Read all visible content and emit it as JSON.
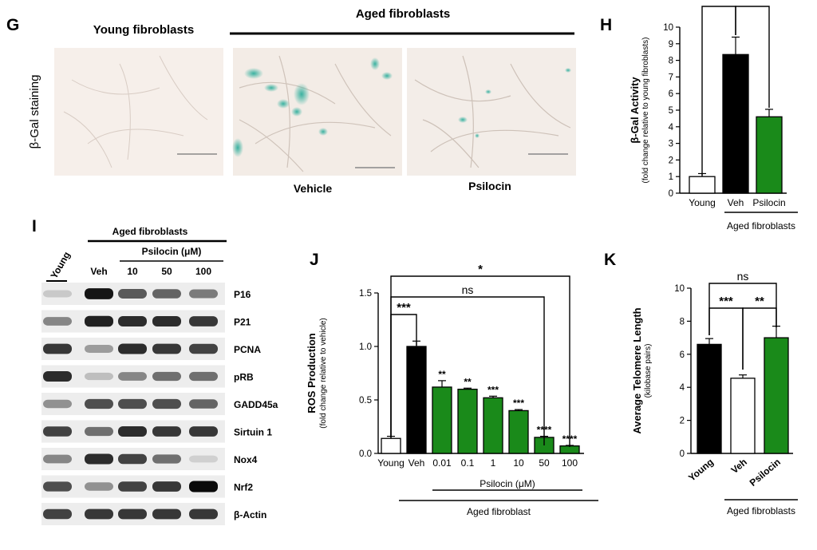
{
  "panel_g": {
    "letter": "G",
    "young_header": "Young fibroblasts",
    "aged_header": "Aged fibroblasts",
    "row_label": "β-Gal staining",
    "caption_vehicle": "Vehicle",
    "caption_psilocin": "Psilocin",
    "colors": {
      "image_bg": "#f6efea",
      "stain": "#3fb9a8"
    }
  },
  "panel_i": {
    "letter": "I",
    "aged_header": "Aged fibroblasts",
    "psilocin_header": "Psilocin (μM)",
    "young_label": "Young",
    "lanes": [
      "Veh",
      "10",
      "50",
      "100"
    ],
    "proteins": [
      "P16",
      "P21",
      "PCNA",
      "pRB",
      "GADD45a",
      "Sirtuin 1",
      "Nox4",
      "Nrf2",
      "β-Actin"
    ],
    "band_intensity": [
      [
        0.15,
        0.95,
        0.65,
        0.6,
        0.5
      ],
      [
        0.45,
        0.9,
        0.85,
        0.85,
        0.8
      ],
      [
        0.8,
        0.35,
        0.85,
        0.8,
        0.75
      ],
      [
        0.85,
        0.2,
        0.45,
        0.55,
        0.55
      ],
      [
        0.4,
        0.7,
        0.7,
        0.7,
        0.6
      ],
      [
        0.75,
        0.55,
        0.85,
        0.8,
        0.8
      ],
      [
        0.45,
        0.85,
        0.75,
        0.55,
        0.12
      ],
      [
        0.7,
        0.4,
        0.75,
        0.8,
        1.0
      ],
      [
        0.75,
        0.8,
        0.8,
        0.8,
        0.8
      ]
    ]
  },
  "chart_data": [
    {
      "id": "H",
      "type": "bar",
      "letter": "H",
      "categories": [
        "Young",
        "Veh",
        "Psilocin"
      ],
      "values": [
        1.0,
        8.35,
        4.6
      ],
      "errors": [
        0.18,
        1.05,
        0.45
      ],
      "fills": [
        "#ffffff",
        "#000000",
        "#1a8a1a"
      ],
      "ylabel": "β-Gal Activity",
      "ylabel_sub": "(fold change relative to young fibroblasts)",
      "ylim": [
        0,
        10
      ],
      "yticks": [
        "0",
        "1",
        "2",
        "3",
        "4",
        "5",
        "6",
        "7",
        "8",
        "9",
        "10"
      ],
      "group_label": "Aged fibroblasts",
      "significance": [
        {
          "from": "Young",
          "to": "Veh",
          "text": "***"
        },
        {
          "from": "Veh",
          "to": "Psilocin",
          "text": "*"
        }
      ]
    },
    {
      "id": "J",
      "type": "bar",
      "letter": "J",
      "categories": [
        "Young",
        "Veh",
        "0.01",
        "0.1",
        "1",
        "10",
        "50",
        "100"
      ],
      "values": [
        0.14,
        1.0,
        0.62,
        0.6,
        0.52,
        0.4,
        0.15,
        0.07
      ],
      "errors": [
        0.02,
        0.05,
        0.06,
        0.01,
        0.015,
        0.01,
        0.01,
        0.005
      ],
      "fills": [
        "#ffffff",
        "#000000",
        "#1a8a1a",
        "#1a8a1a",
        "#1a8a1a",
        "#1a8a1a",
        "#1a8a1a",
        "#1a8a1a"
      ],
      "bar_labels": [
        "",
        "",
        "**",
        "**",
        "***",
        "***",
        "****",
        "****"
      ],
      "ylabel": "ROS Production",
      "ylabel_sub": "(fold change relative to vehicle)",
      "ylim": [
        0,
        1.5
      ],
      "yticks": [
        "0.0",
        "0.5",
        "1.0",
        "1.5"
      ],
      "subgroup_label": "Psilocin (μM)",
      "group_label": "Aged fibroblast",
      "significance": [
        {
          "from": "Young",
          "to": "Veh",
          "text": "***"
        },
        {
          "from": "Young",
          "to": "50",
          "text": "ns"
        },
        {
          "from": "Young",
          "to": "100",
          "text": "*"
        }
      ]
    },
    {
      "id": "K",
      "type": "bar",
      "letter": "K",
      "categories": [
        "Young",
        "Veh",
        "Psilocin"
      ],
      "values": [
        6.6,
        4.55,
        7.0
      ],
      "errors": [
        0.35,
        0.2,
        0.7
      ],
      "fills": [
        "#000000",
        "#ffffff",
        "#1a8a1a"
      ],
      "ylabel": "Average Telomere Length",
      "ylabel_sub": "(kilobase pairs)",
      "ylim": [
        0,
        10
      ],
      "yticks": [
        "0",
        "2",
        "4",
        "6",
        "8",
        "10"
      ],
      "group_label": "Aged fibroblasts",
      "significance": [
        {
          "from": "Young",
          "to": "Veh",
          "text": "***"
        },
        {
          "from": "Veh",
          "to": "Psilocin",
          "text": "**"
        },
        {
          "from": "Young",
          "to": "Psilocin",
          "text": "ns"
        }
      ]
    }
  ]
}
